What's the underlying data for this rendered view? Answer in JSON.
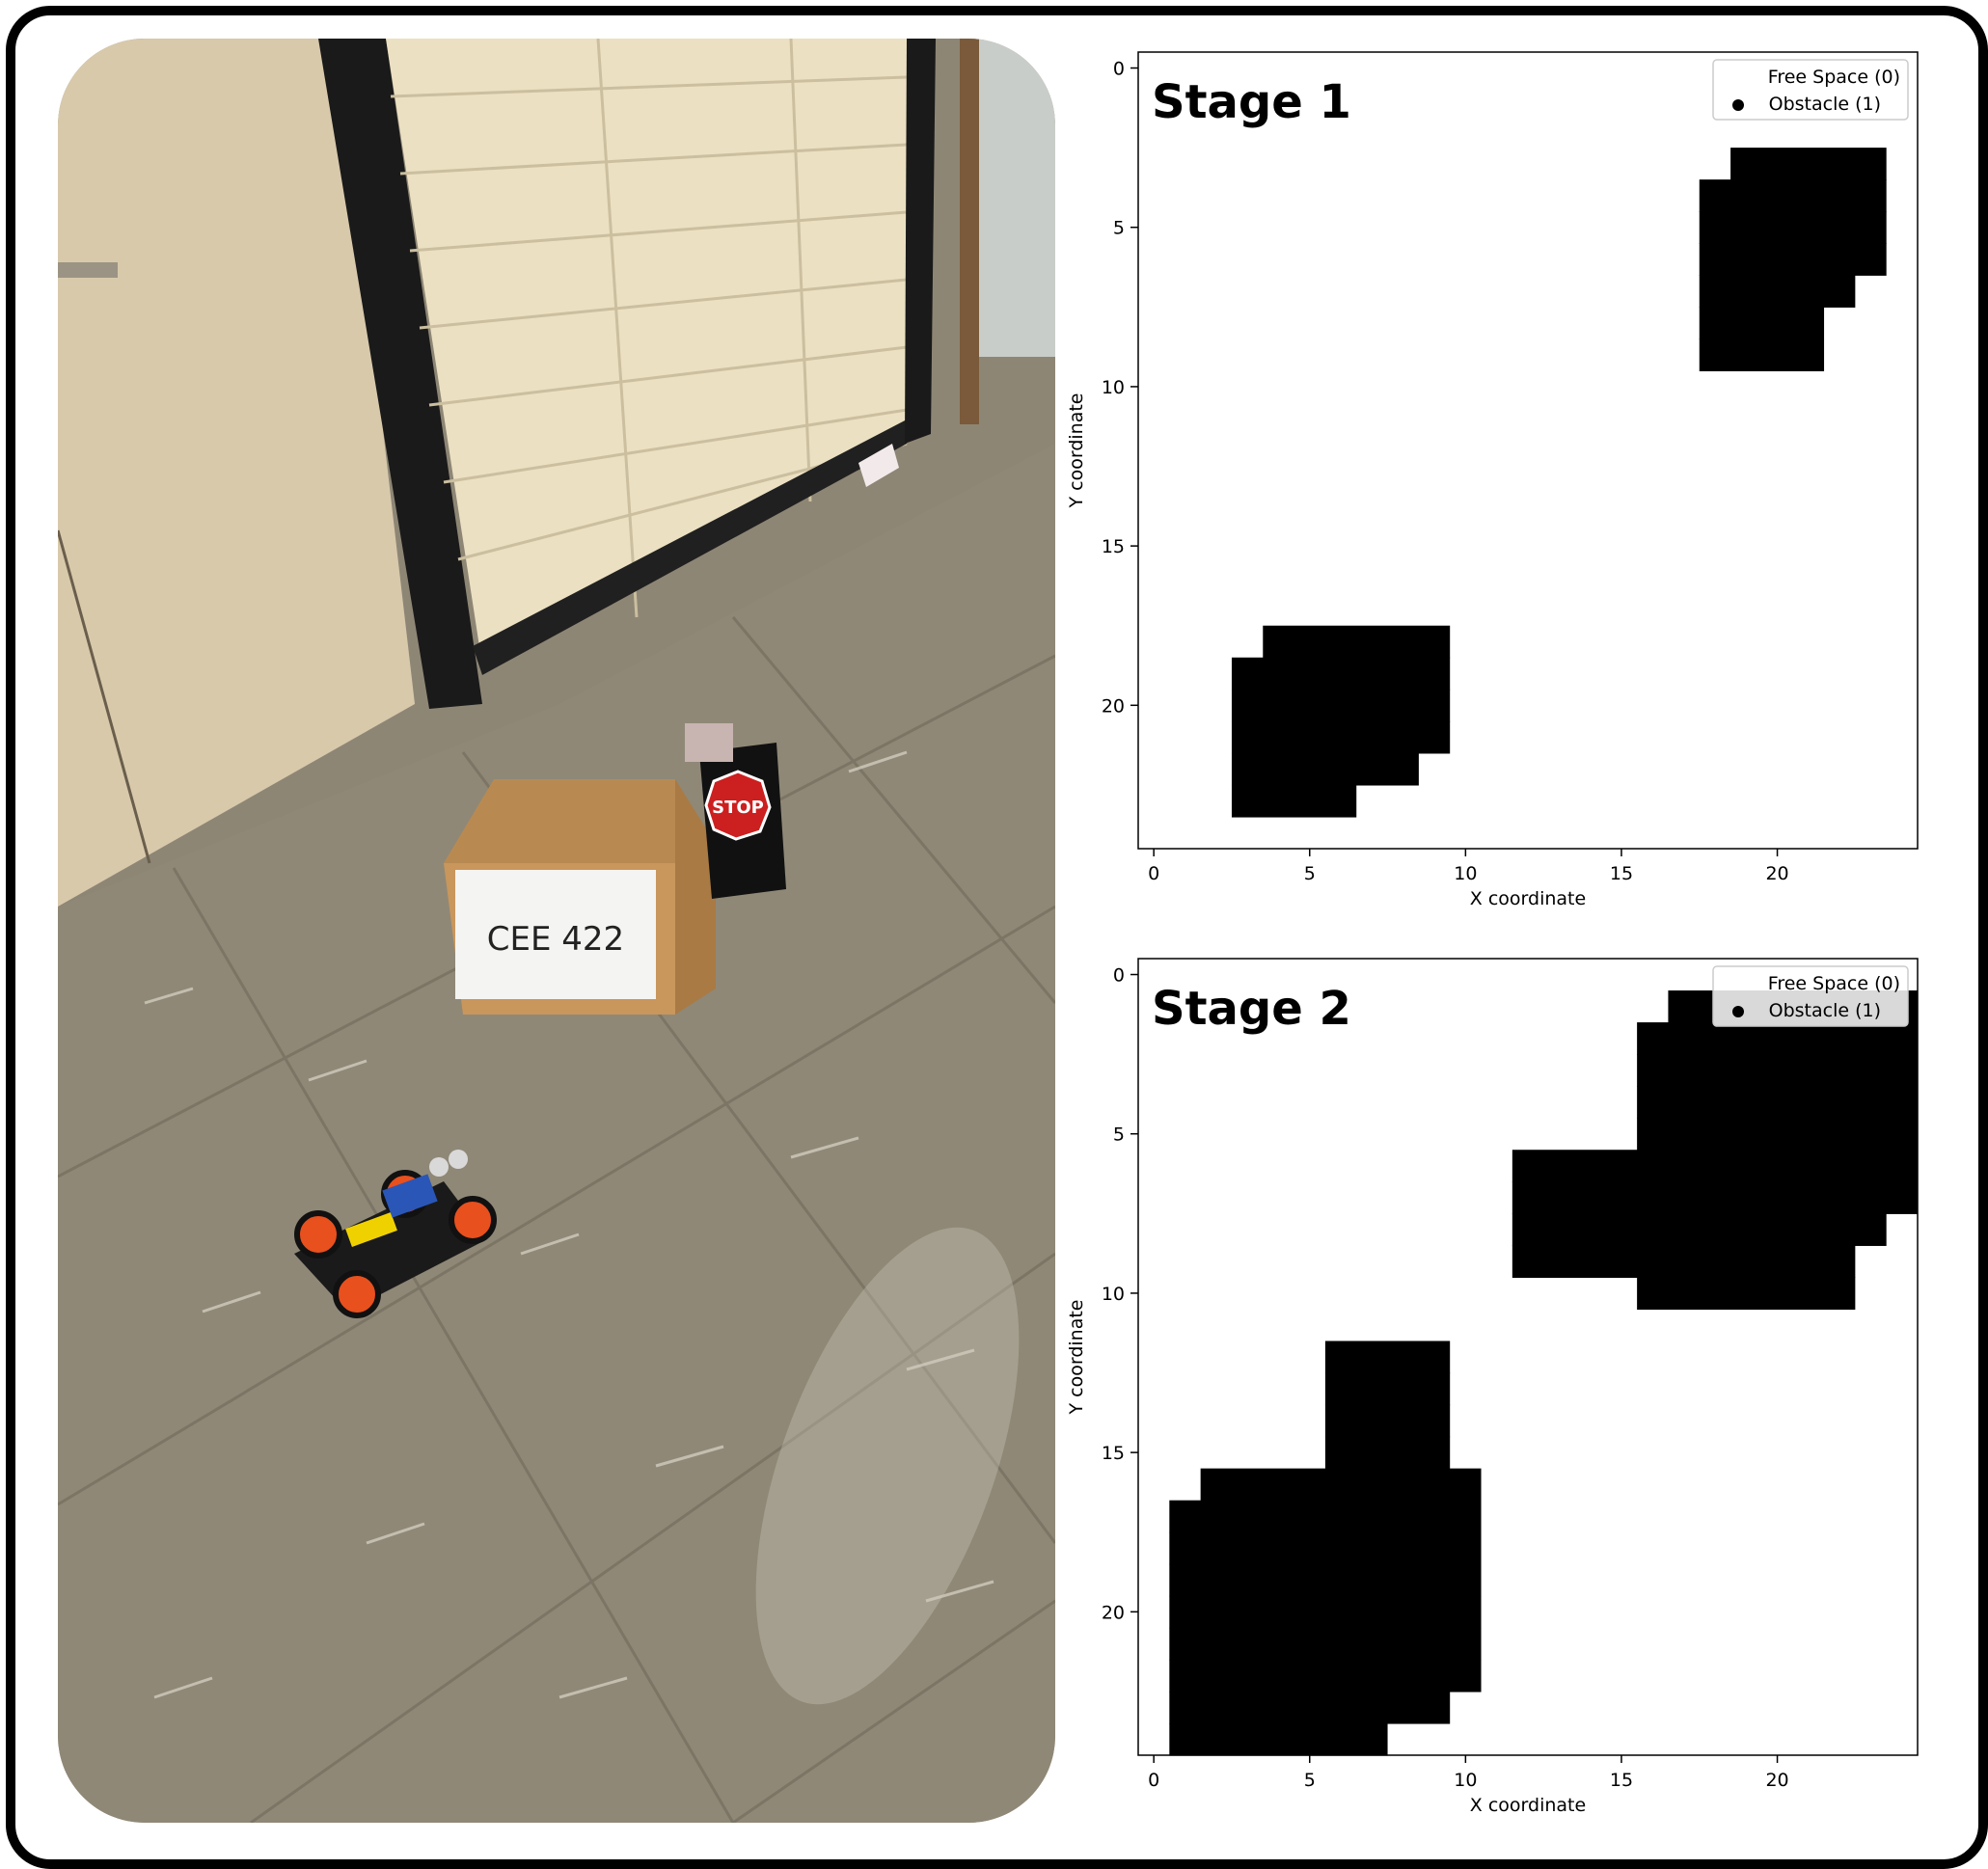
{
  "chart_data": [
    {
      "type": "heatmap",
      "title": "Stage 1",
      "xlabel": "X coordinate",
      "ylabel": "Y coordinate",
      "xlim": [
        -0.5,
        24.5
      ],
      "ylim": [
        24.5,
        -0.5
      ],
      "xticks": [
        0,
        5,
        10,
        15,
        20
      ],
      "yticks": [
        0,
        5,
        10,
        15,
        20
      ],
      "legend": {
        "position": "top-right",
        "entries": [
          "Free Space (0)",
          "Obstacle (1)"
        ]
      },
      "colors": {
        "free": "#ffffff",
        "obstacle": "#000000"
      },
      "obstacle_cells": [
        {
          "y": 3,
          "x": [
            19,
            23
          ]
        },
        {
          "y": 4,
          "x": [
            18,
            23
          ]
        },
        {
          "y": 5,
          "x": [
            18,
            23
          ]
        },
        {
          "y": 6,
          "x": [
            18,
            23
          ]
        },
        {
          "y": 7,
          "x": [
            18,
            22
          ]
        },
        {
          "y": 8,
          "x": [
            18,
            21
          ]
        },
        {
          "y": 9,
          "x": [
            18,
            21
          ]
        },
        {
          "y": 18,
          "x": [
            4,
            9
          ]
        },
        {
          "y": 19,
          "x": [
            3,
            9
          ]
        },
        {
          "y": 20,
          "x": [
            3,
            9
          ]
        },
        {
          "y": 21,
          "x": [
            3,
            9
          ]
        },
        {
          "y": 22,
          "x": [
            3,
            8
          ]
        },
        {
          "y": 23,
          "x": [
            3,
            6
          ]
        }
      ]
    },
    {
      "type": "heatmap",
      "title": "Stage 2",
      "xlabel": "X coordinate",
      "ylabel": "Y coordinate",
      "xlim": [
        -0.5,
        24.5
      ],
      "ylim": [
        24.5,
        -0.5
      ],
      "xticks": [
        0,
        5,
        10,
        15,
        20
      ],
      "yticks": [
        0,
        5,
        10,
        15,
        20
      ],
      "legend": {
        "position": "top-right",
        "entries": [
          "Free Space (0)",
          "Obstacle (1)"
        ]
      },
      "colors": {
        "free": "#ffffff",
        "obstacle": "#000000"
      },
      "obstacle_cells": [
        {
          "y": 1,
          "x": [
            17,
            24
          ]
        },
        {
          "y": 2,
          "x": [
            16,
            24
          ]
        },
        {
          "y": 3,
          "x": [
            16,
            24
          ]
        },
        {
          "y": 4,
          "x": [
            16,
            24
          ]
        },
        {
          "y": 5,
          "x": [
            16,
            24
          ]
        },
        {
          "y": 6,
          "x": [
            12,
            24
          ]
        },
        {
          "y": 7,
          "x": [
            12,
            24
          ]
        },
        {
          "y": 8,
          "x": [
            12,
            23
          ]
        },
        {
          "y": 9,
          "x": [
            12,
            22
          ]
        },
        {
          "y": 10,
          "x": [
            16,
            22
          ]
        },
        {
          "y": 12,
          "x": [
            6,
            9
          ]
        },
        {
          "y": 13,
          "x": [
            6,
            9
          ]
        },
        {
          "y": 14,
          "x": [
            6,
            9
          ]
        },
        {
          "y": 15,
          "x": [
            6,
            9
          ]
        },
        {
          "y": 16,
          "x": [
            2,
            10
          ]
        },
        {
          "y": 17,
          "x": [
            1,
            10
          ]
        },
        {
          "y": 18,
          "x": [
            1,
            10
          ]
        },
        {
          "y": 19,
          "x": [
            1,
            10
          ]
        },
        {
          "y": 20,
          "x": [
            1,
            10
          ]
        },
        {
          "y": 21,
          "x": [
            1,
            10
          ]
        },
        {
          "y": 22,
          "x": [
            1,
            10
          ]
        },
        {
          "y": 23,
          "x": [
            1,
            9
          ]
        },
        {
          "y": 24,
          "x": [
            1,
            7
          ]
        }
      ]
    }
  ],
  "photo": {
    "box_label": "CEE 422",
    "sign_label": "STOP"
  }
}
